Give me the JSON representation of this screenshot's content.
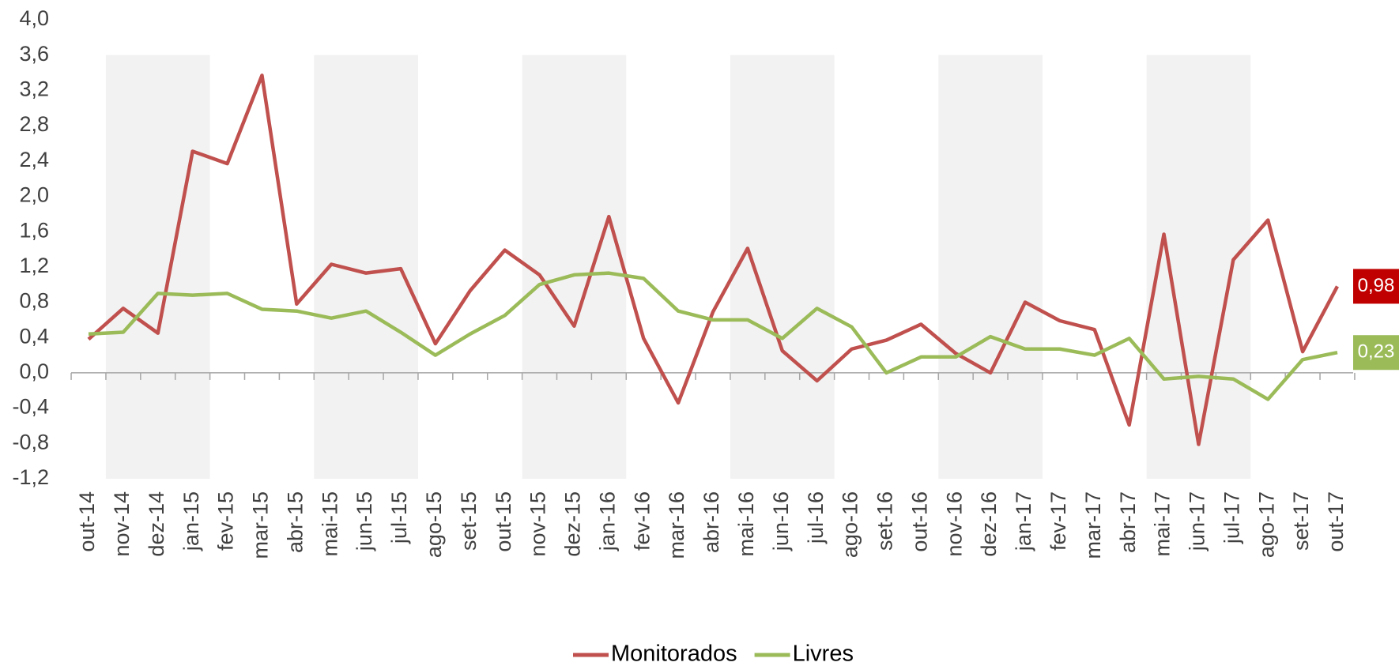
{
  "chart_data": {
    "type": "line",
    "categories": [
      "out-14",
      "nov-14",
      "dez-14",
      "jan-15",
      "fev-15",
      "mar-15",
      "abr-15",
      "mai-15",
      "jun-15",
      "jul-15",
      "ago-15",
      "set-15",
      "out-15",
      "nov-15",
      "dez-15",
      "jan-16",
      "fev-16",
      "mar-16",
      "abr-16",
      "mai-16",
      "jun-16",
      "jul-16",
      "ago-16",
      "set-16",
      "out-16",
      "nov-16",
      "dez-16",
      "jan-17",
      "fev-17",
      "mar-17",
      "abr-17",
      "mai-17",
      "jun-17",
      "jul-17",
      "ago-17",
      "set-17",
      "out-17"
    ],
    "series": [
      {
        "name": "Monitorados",
        "color": "#c0504d",
        "values": [
          0.38,
          0.73,
          0.45,
          2.51,
          2.37,
          3.37,
          0.78,
          1.23,
          1.13,
          1.18,
          0.33,
          0.93,
          1.39,
          1.11,
          0.53,
          1.77,
          0.39,
          -0.34,
          0.69,
          1.41,
          0.25,
          -0.09,
          0.27,
          0.37,
          0.55,
          0.22,
          0.0,
          0.8,
          0.59,
          0.49,
          -0.59,
          1.57,
          -0.81,
          1.28,
          1.73,
          0.24,
          0.98
        ],
        "value_labels": [
          null,
          null,
          null,
          null,
          null,
          null,
          null,
          null,
          null,
          null,
          null,
          null,
          null,
          null,
          null,
          null,
          null,
          null,
          null,
          null,
          null,
          null,
          null,
          null,
          null,
          null,
          null,
          null,
          null,
          null,
          null,
          null,
          null,
          null,
          null,
          null,
          "0,98"
        ],
        "label_color": "#c00000"
      },
      {
        "name": "Livres",
        "color": "#9bbb59",
        "values": [
          0.44,
          0.46,
          0.9,
          0.88,
          0.9,
          0.72,
          0.7,
          0.62,
          0.7,
          0.46,
          0.2,
          0.44,
          0.65,
          1.0,
          1.11,
          1.13,
          1.07,
          0.7,
          0.6,
          0.6,
          0.39,
          0.73,
          0.52,
          0.0,
          0.18,
          0.18,
          0.41,
          0.27,
          0.27,
          0.2,
          0.39,
          -0.07,
          -0.04,
          -0.07,
          -0.3,
          0.15,
          0.23
        ],
        "value_labels": [
          null,
          null,
          null,
          null,
          null,
          null,
          null,
          null,
          null,
          null,
          null,
          null,
          null,
          null,
          null,
          null,
          null,
          null,
          null,
          null,
          null,
          null,
          null,
          null,
          null,
          null,
          null,
          null,
          null,
          null,
          null,
          null,
          null,
          null,
          null,
          null,
          "0,23"
        ],
        "label_color": "#9bbb59"
      }
    ],
    "ylim": [
      -1.2,
      4.0
    ],
    "yticks": [
      {
        "value": -1.2,
        "label": "-1,2"
      },
      {
        "value": -0.8,
        "label": "-0,8"
      },
      {
        "value": -0.4,
        "label": "-0,4"
      },
      {
        "value": 0,
        "label": "0,0"
      },
      {
        "value": 0.4,
        "label": "0,4"
      },
      {
        "value": 0.8,
        "label": "0,8"
      },
      {
        "value": 1.2,
        "label": "1,2"
      },
      {
        "value": 1.6,
        "label": "1,6"
      },
      {
        "value": 2.0,
        "label": "2,0"
      },
      {
        "value": 2.4,
        "label": "2,4"
      },
      {
        "value": 2.8,
        "label": "2,8"
      },
      {
        "value": 3.2,
        "label": "3,2"
      },
      {
        "value": 3.6,
        "label": "3,6"
      },
      {
        "value": 4.0,
        "label": "4,0"
      }
    ],
    "grid": false
  }
}
